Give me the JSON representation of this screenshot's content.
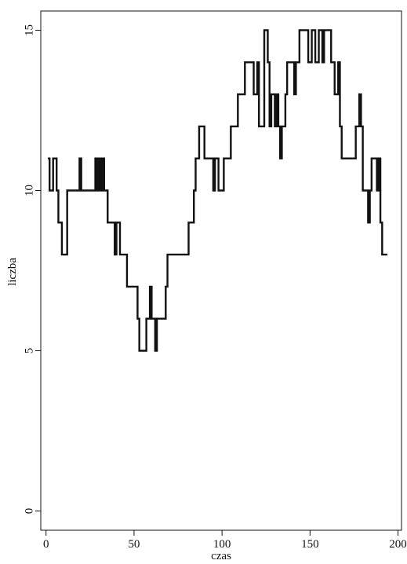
{
  "chart_data": {
    "type": "line",
    "step": true,
    "xlabel": "czas",
    "ylabel": "liczba",
    "xlim": [
      -3,
      202
    ],
    "ylim": [
      -0.6,
      15.6
    ],
    "xticks": [
      0,
      50,
      100,
      150,
      200
    ],
    "yticks": [
      0,
      5,
      10,
      15
    ],
    "grid": false,
    "series": [
      {
        "x": [
          1,
          2,
          3,
          4,
          5,
          6,
          7,
          8,
          9,
          11,
          12,
          13,
          14,
          19,
          20,
          21,
          22,
          28,
          29,
          30,
          31,
          32,
          33,
          34,
          35,
          36,
          39,
          40,
          41,
          42,
          43,
          45,
          46,
          47,
          52,
          53,
          56,
          57,
          58,
          59,
          60,
          61,
          62,
          63,
          64,
          65,
          66,
          67,
          68,
          69,
          74,
          75,
          81,
          82,
          84,
          85,
          86,
          87,
          88,
          90,
          91,
          93,
          95,
          96,
          97,
          98,
          101,
          102,
          103,
          104,
          105,
          106,
          109,
          110,
          113,
          117,
          118,
          120,
          121,
          124,
          125,
          126,
          127,
          128,
          129,
          130,
          131,
          132,
          133,
          134,
          135,
          136,
          137,
          138,
          139,
          140,
          141,
          142,
          144,
          148,
          149,
          150,
          151,
          152,
          153,
          155,
          156,
          157,
          158,
          159,
          160,
          161,
          162,
          163,
          164,
          165,
          166,
          167,
          168,
          169,
          170,
          171,
          172,
          174,
          176,
          178,
          179,
          180,
          181,
          182,
          183,
          184,
          185,
          186,
          187,
          188,
          189,
          190,
          191,
          192,
          193,
          194
        ],
        "y": [
          11,
          10,
          10,
          11,
          11,
          10,
          9,
          9,
          8,
          8,
          10,
          10,
          10,
          11,
          10,
          10,
          10,
          11,
          10,
          11,
          10,
          11,
          10,
          10,
          9,
          9,
          8,
          9,
          9,
          8,
          8,
          8,
          7,
          7,
          6,
          5,
          5,
          6,
          6,
          7,
          6,
          6,
          5,
          6,
          6,
          6,
          6,
          6,
          7,
          8,
          8,
          8,
          9,
          9,
          10,
          11,
          11,
          12,
          12,
          11,
          11,
          11,
          10,
          11,
          11,
          10,
          11,
          11,
          11,
          11,
          12,
          12,
          13,
          13,
          14,
          14,
          13,
          14,
          12,
          15,
          15,
          14,
          12,
          13,
          13,
          12,
          13,
          12,
          11,
          12,
          12,
          13,
          14,
          14,
          14,
          14,
          13,
          14,
          15,
          15,
          14,
          14,
          15,
          15,
          14,
          15,
          15,
          14,
          15,
          15,
          15,
          15,
          14,
          14,
          13,
          13,
          14,
          12,
          11,
          11,
          11,
          11,
          11,
          11,
          12,
          13,
          12,
          10,
          10,
          10,
          9,
          10,
          11,
          11,
          11,
          10,
          11,
          9,
          8,
          8,
          8,
          8
        ]
      }
    ]
  }
}
